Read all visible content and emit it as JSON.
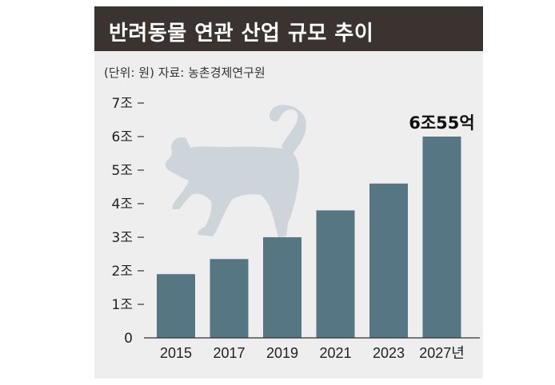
{
  "title": "반려동물 연관 산업 규모 추이",
  "subtitle": "(단위: 원) 자료: 농촌경제연구원",
  "colors": {
    "bar": "#577683",
    "header_bg": "#3a3330",
    "panel_bg": "#eeeeee",
    "cat": "#cdd5db"
  },
  "decoration": {
    "icon": "cat-silhouette-icon"
  },
  "chart_data": {
    "type": "bar",
    "title": "반려동물 연관 산업 규모 추이",
    "subtitle": "(단위: 원) 자료: 농촌경제연구원",
    "categories": [
      "2015",
      "2017",
      "2019",
      "2021",
      "2023",
      "2027년"
    ],
    "values": [
      1.9,
      2.35,
      3.0,
      3.8,
      4.6,
      6.0
    ],
    "y_ticks": [
      "0",
      "1조",
      "2조",
      "3조",
      "4조",
      "5조",
      "6조",
      "7조"
    ],
    "ylim": [
      0,
      7
    ],
    "grid": false,
    "annotations": [
      {
        "category": "2027년",
        "text": "6조55억"
      }
    ]
  }
}
